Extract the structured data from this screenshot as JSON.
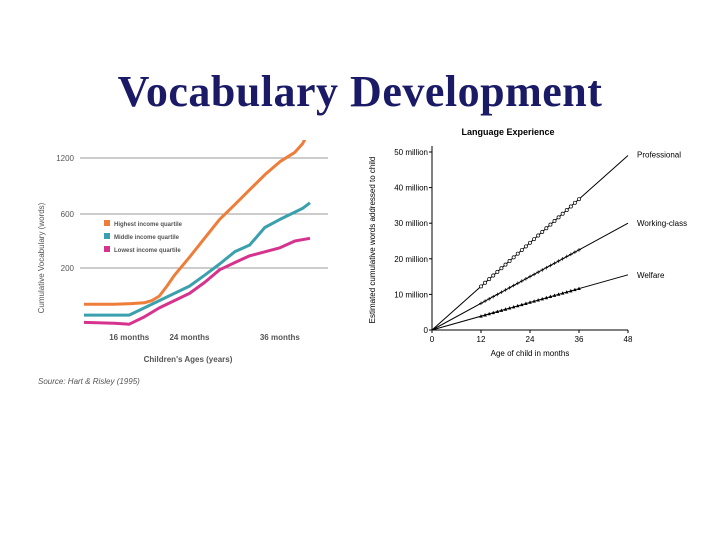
{
  "slide": {
    "title": "Vocabulary Development"
  },
  "chart_data": [
    {
      "type": "line",
      "title": "",
      "xlabel": "Children's Ages (years)",
      "ylabel": "Cumulative Vocabulary (words)",
      "x_tick_labels": [
        "16 months",
        "24 months",
        "36 months"
      ],
      "y_ticks": [
        200,
        600,
        1200
      ],
      "grid": "horizontal",
      "legend_position": "upper-left",
      "source": "Source: Hart & Risley (1995)",
      "series": [
        {
          "name": "Highest income quartile",
          "color": "#ef7d3a",
          "x": [
            10,
            14,
            16,
            18,
            19,
            20,
            21,
            22,
            24,
            26,
            28,
            30,
            32,
            34,
            36,
            38,
            39,
            40
          ],
          "y": [
            0,
            0,
            3,
            8,
            20,
            45,
            100,
            160,
            280,
            420,
            560,
            700,
            860,
            1020,
            1160,
            1260,
            1350,
            1500
          ]
        },
        {
          "name": "Middle income quartile",
          "color": "#3aa0ae",
          "x": [
            10,
            14,
            16,
            18,
            20,
            22,
            24,
            26,
            28,
            30,
            32,
            34,
            36,
            38,
            39,
            40
          ],
          "y": [
            -60,
            -60,
            -60,
            -20,
            20,
            60,
            100,
            160,
            230,
            320,
            370,
            500,
            560,
            620,
            660,
            720
          ]
        },
        {
          "name": "Lowest income quartile",
          "color": "#d6338f",
          "x": [
            10,
            14,
            16,
            18,
            20,
            22,
            24,
            26,
            28,
            30,
            32,
            34,
            36,
            38,
            40
          ],
          "y": [
            -100,
            -105,
            -110,
            -70,
            -20,
            20,
            60,
            120,
            190,
            240,
            290,
            320,
            350,
            400,
            420
          ]
        }
      ]
    },
    {
      "type": "line",
      "title": "Language Experience",
      "xlabel": "Age of child in months",
      "ylabel": "Estimated cumulative words addressed to child",
      "x_ticks": [
        0,
        12,
        24,
        36,
        48
      ],
      "y_tick_labels": [
        "0",
        "10 million",
        "20 million",
        "30 million",
        "40 million",
        "50 million"
      ],
      "xlim": [
        0,
        48
      ],
      "ylim": [
        0,
        50
      ],
      "series": [
        {
          "name": "Professional",
          "x": [
            0,
            48
          ],
          "y": [
            0,
            49
          ],
          "obs_x": [
            12,
            36
          ],
          "marker": "circle"
        },
        {
          "name": "Working-class",
          "x": [
            0,
            48
          ],
          "y": [
            0,
            30
          ],
          "obs_x": [
            12,
            36
          ],
          "marker": "plus"
        },
        {
          "name": "Welfare",
          "x": [
            0,
            48
          ],
          "y": [
            0,
            15.5
          ],
          "obs_x": [
            12,
            36
          ],
          "marker": "tri"
        }
      ]
    }
  ]
}
